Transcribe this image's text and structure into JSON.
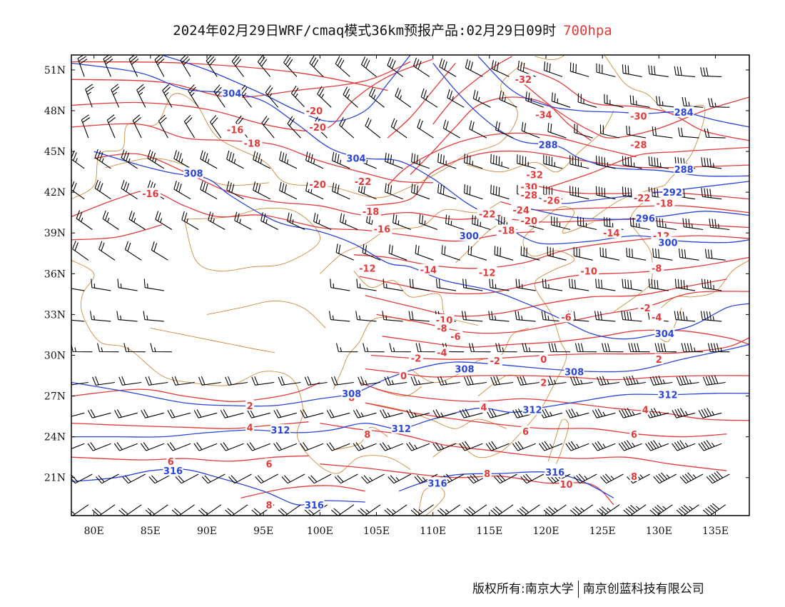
{
  "title": {
    "main": "2024年02月29日WRF/cmaq模式36km预报产品:02月29日09时",
    "level": "700hpa"
  },
  "colors": {
    "temperature": "#e23a3a",
    "geopotential": "#2a45d8",
    "border": "#d08a3c",
    "wind": "#000000"
  },
  "axes": {
    "lat_ticks": [
      "51N",
      "48N",
      "45N",
      "42N",
      "39N",
      "36N",
      "33N",
      "30N",
      "27N",
      "24N",
      "21N"
    ],
    "lat_values": [
      51,
      48,
      45,
      42,
      39,
      36,
      33,
      30,
      27,
      24,
      21
    ],
    "lon_ticks": [
      "80E",
      "85E",
      "90E",
      "95E",
      "100E",
      "105E",
      "110E",
      "115E",
      "120E",
      "125E",
      "130E",
      "135E"
    ],
    "lon_values": [
      80,
      85,
      90,
      95,
      100,
      105,
      110,
      115,
      120,
      125,
      130,
      135
    ],
    "lon_range": [
      78,
      138
    ],
    "lat_range": [
      18.2,
      52.1
    ]
  },
  "temperature_labels": [
    {
      "t": "-32",
      "lon": 118,
      "lat": 50.3
    },
    {
      "t": "-34",
      "lon": 119.8,
      "lat": 47.7
    },
    {
      "t": "-30",
      "lon": 128.2,
      "lat": 47.6
    },
    {
      "t": "-28",
      "lon": 128.2,
      "lat": 45.5
    },
    {
      "t": "-32",
      "lon": 119,
      "lat": 43.3
    },
    {
      "t": "-30",
      "lon": 118.5,
      "lat": 42.4
    },
    {
      "t": "-28",
      "lon": 118.5,
      "lat": 41.8
    },
    {
      "t": "-26",
      "lon": 120.5,
      "lat": 41.4
    },
    {
      "t": "-24",
      "lon": 117.8,
      "lat": 40.7
    },
    {
      "t": "-22",
      "lon": 114.8,
      "lat": 40.4
    },
    {
      "t": "-20",
      "lon": 118.5,
      "lat": 39.9
    },
    {
      "t": "-22",
      "lon": 128.5,
      "lat": 41.6
    },
    {
      "t": "-18",
      "lon": 130.5,
      "lat": 41.2
    },
    {
      "t": "-18",
      "lon": 116.5,
      "lat": 39.2
    },
    {
      "t": "-14",
      "lon": 125.8,
      "lat": 39.0
    },
    {
      "t": "-12",
      "lon": 130.2,
      "lat": 38.8
    },
    {
      "t": "-20",
      "lon": 99.5,
      "lat": 48.0
    },
    {
      "t": "-20",
      "lon": 99.8,
      "lat": 46.8
    },
    {
      "t": "-16",
      "lon": 92.5,
      "lat": 46.6
    },
    {
      "t": "-18",
      "lon": 94,
      "lat": 45.6
    },
    {
      "t": "-20",
      "lon": 99.8,
      "lat": 42.6
    },
    {
      "t": "-22",
      "lon": 103.8,
      "lat": 42.8
    },
    {
      "t": "-18",
      "lon": 104.5,
      "lat": 40.6
    },
    {
      "t": "-16",
      "lon": 105.5,
      "lat": 39.3
    },
    {
      "t": "-16",
      "lon": 85,
      "lat": 41.9
    },
    {
      "t": "-12",
      "lon": 104.2,
      "lat": 36.4
    },
    {
      "t": "-14",
      "lon": 109.6,
      "lat": 36.3
    },
    {
      "t": "-12",
      "lon": 114.8,
      "lat": 36.1
    },
    {
      "t": "-10",
      "lon": 123.8,
      "lat": 36.2
    },
    {
      "t": "-8",
      "lon": 129.8,
      "lat": 36.4
    },
    {
      "t": "-10",
      "lon": 111,
      "lat": 32.6
    },
    {
      "t": "-8",
      "lon": 110.8,
      "lat": 32.0
    },
    {
      "t": "-6",
      "lon": 112,
      "lat": 31.4
    },
    {
      "t": "-6",
      "lon": 121.8,
      "lat": 32.8
    },
    {
      "t": "-4",
      "lon": 110.8,
      "lat": 30.2
    },
    {
      "t": "-2",
      "lon": 128.8,
      "lat": 33.5
    },
    {
      "t": "-4",
      "lon": 129.8,
      "lat": 32.8
    },
    {
      "t": "-2",
      "lon": 115.5,
      "lat": 29.6
    },
    {
      "t": "0",
      "lon": 119.8,
      "lat": 29.7
    },
    {
      "t": "2",
      "lon": 130,
      "lat": 29.7
    },
    {
      "t": "-2",
      "lon": 108.5,
      "lat": 29.8
    },
    {
      "t": "0",
      "lon": 107.4,
      "lat": 28.5
    },
    {
      "t": "2",
      "lon": 119.8,
      "lat": 28.0
    },
    {
      "t": "4",
      "lon": 114.5,
      "lat": 26.2
    },
    {
      "t": "4",
      "lon": 128.8,
      "lat": 26.0
    },
    {
      "t": "6",
      "lon": 118.2,
      "lat": 24.4
    },
    {
      "t": "6",
      "lon": 127.8,
      "lat": 24.2
    },
    {
      "t": "8",
      "lon": 114.8,
      "lat": 21.3
    },
    {
      "t": "8",
      "lon": 127.8,
      "lat": 21.1
    },
    {
      "t": "10",
      "lon": 121.8,
      "lat": 20.5
    },
    {
      "t": "2",
      "lon": 93.8,
      "lat": 26.3
    },
    {
      "t": "4",
      "lon": 93.8,
      "lat": 24.7
    },
    {
      "t": "8",
      "lon": 104.2,
      "lat": 24.2
    },
    {
      "t": "6",
      "lon": 86.8,
      "lat": 22.2
    },
    {
      "t": "6",
      "lon": 95.5,
      "lat": 22.0
    },
    {
      "t": "8",
      "lon": 95.5,
      "lat": 19.0
    },
    {
      "t": "8",
      "lon": 102.8,
      "lat": 26.9
    }
  ],
  "geopotential_labels": [
    {
      "t": "304",
      "lon": 92.2,
      "lat": 49.3
    },
    {
      "t": "304",
      "lon": 103.2,
      "lat": 44.5
    },
    {
      "t": "308",
      "lon": 88.8,
      "lat": 43.4
    },
    {
      "t": "288",
      "lon": 120.2,
      "lat": 45.5
    },
    {
      "t": "284",
      "lon": 132.2,
      "lat": 47.9
    },
    {
      "t": "288",
      "lon": 132.2,
      "lat": 43.7
    },
    {
      "t": "292",
      "lon": 131.2,
      "lat": 42.0
    },
    {
      "t": "296",
      "lon": 128.8,
      "lat": 40.1
    },
    {
      "t": "300",
      "lon": 130.8,
      "lat": 38.3
    },
    {
      "t": "300",
      "lon": 113.2,
      "lat": 38.8
    },
    {
      "t": "304",
      "lon": 130.5,
      "lat": 31.6
    },
    {
      "t": "308",
      "lon": 112.8,
      "lat": 29.0
    },
    {
      "t": "308",
      "lon": 122.5,
      "lat": 28.8
    },
    {
      "t": "312",
      "lon": 130.8,
      "lat": 27.1
    },
    {
      "t": "312",
      "lon": 118.8,
      "lat": 26.0
    },
    {
      "t": "312",
      "lon": 96.5,
      "lat": 24.5
    },
    {
      "t": "312",
      "lon": 107.2,
      "lat": 24.6
    },
    {
      "t": "308",
      "lon": 102.8,
      "lat": 27.2
    },
    {
      "t": "316",
      "lon": 87,
      "lat": 21.5
    },
    {
      "t": "316",
      "lon": 120.8,
      "lat": 21.4
    },
    {
      "t": "316",
      "lon": 110.4,
      "lat": 20.6
    },
    {
      "t": "316",
      "lon": 99.5,
      "lat": 19.0
    }
  ],
  "footer": {
    "left": "版权所有:南京大学",
    "right": "南京创蓝科技有限公司"
  }
}
